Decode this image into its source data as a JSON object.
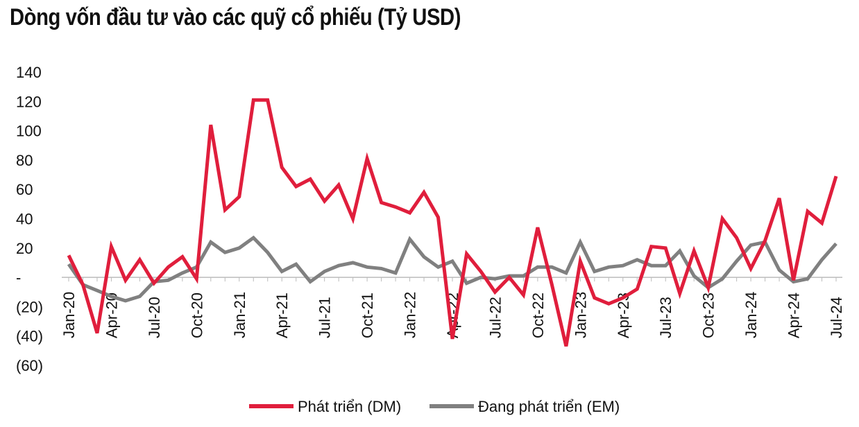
{
  "title": "Dòng vốn đầu tư vào các quỹ cổ phiếu (Tỷ USD)",
  "chart_data": {
    "type": "line",
    "title": "Dòng vốn đầu tư vào các quỹ cổ phiếu (Tỷ USD)",
    "xlabel": "",
    "ylabel": "",
    "ylim": [
      -60,
      140
    ],
    "y_ticks": [
      140,
      120,
      100,
      80,
      60,
      40,
      20,
      0,
      -20,
      -40,
      -60
    ],
    "y_tick_labels": [
      "140",
      "120",
      "100",
      "80",
      "60",
      "40",
      "20",
      "-",
      "(20)",
      "(40)",
      "(60)"
    ],
    "x": [
      "Jan-20",
      "Feb-20",
      "Mar-20",
      "Apr-20",
      "May-20",
      "Jun-20",
      "Jul-20",
      "Aug-20",
      "Sep-20",
      "Oct-20",
      "Nov-20",
      "Dec-20",
      "Jan-21",
      "Feb-21",
      "Mar-21",
      "Apr-21",
      "May-21",
      "Jun-21",
      "Jul-21",
      "Aug-21",
      "Sep-21",
      "Oct-21",
      "Nov-21",
      "Dec-21",
      "Jan-22",
      "Feb-22",
      "Mar-22",
      "Apr-22",
      "May-22",
      "Jun-22",
      "Jul-22",
      "Aug-22",
      "Sep-22",
      "Oct-22",
      "Nov-22",
      "Dec-22",
      "Jan-23",
      "Feb-23",
      "Mar-23",
      "Apr-23",
      "May-23",
      "Jun-23",
      "Jul-23",
      "Aug-23",
      "Sep-23",
      "Oct-23",
      "Nov-23",
      "Dec-23",
      "Jan-24",
      "Feb-24",
      "Mar-24",
      "Apr-24",
      "May-24",
      "Jun-24",
      "Jul-24"
    ],
    "x_tick_labels": [
      "Jan-20",
      "Apr-20",
      "Jul-20",
      "Oct-20",
      "Jan-21",
      "Apr-21",
      "Jul-21",
      "Oct-21",
      "Jan-22",
      "Apr-22",
      "Jul-22",
      "Oct-22",
      "Jan-23",
      "Apr-23",
      "Jul-23",
      "Oct-23",
      "Jan-24",
      "Apr-24",
      "Jul-24"
    ],
    "series": [
      {
        "name": "Phát triển (DM)",
        "color": "#e01e3c",
        "values": [
          15,
          -5,
          -38,
          21,
          -2,
          12,
          -4,
          7,
          14,
          -1,
          104,
          46,
          55,
          121,
          121,
          75,
          62,
          67,
          52,
          63,
          40,
          81,
          51,
          48,
          44,
          58,
          41,
          -42,
          16,
          4,
          -10,
          0,
          -12,
          34,
          -5,
          -47,
          11,
          -14,
          -18,
          -14,
          -8,
          21,
          20,
          -11,
          18,
          -7,
          40,
          27,
          6,
          25,
          54,
          -2,
          45,
          37,
          69
        ]
      },
      {
        "name": "Đang phát triển (EM)",
        "color": "#808080",
        "values": [
          9,
          -5,
          -9,
          -13,
          -16,
          -13,
          -3,
          -2,
          3,
          7,
          24,
          17,
          20,
          27,
          17,
          4,
          9,
          -3,
          4,
          8,
          10,
          7,
          6,
          3,
          26,
          14,
          7,
          11,
          -4,
          0,
          -1,
          1,
          1,
          7,
          7,
          3,
          24,
          4,
          7,
          8,
          12,
          8,
          8,
          18,
          1,
          -7,
          -1,
          11,
          22,
          24,
          5,
          -3,
          -1,
          12,
          23
        ]
      }
    ],
    "grid": false,
    "legend": "bottom"
  },
  "colors": {
    "dm": "#e01e3c",
    "em": "#808080",
    "axis": "#bbbbbb",
    "text": "#111111"
  }
}
